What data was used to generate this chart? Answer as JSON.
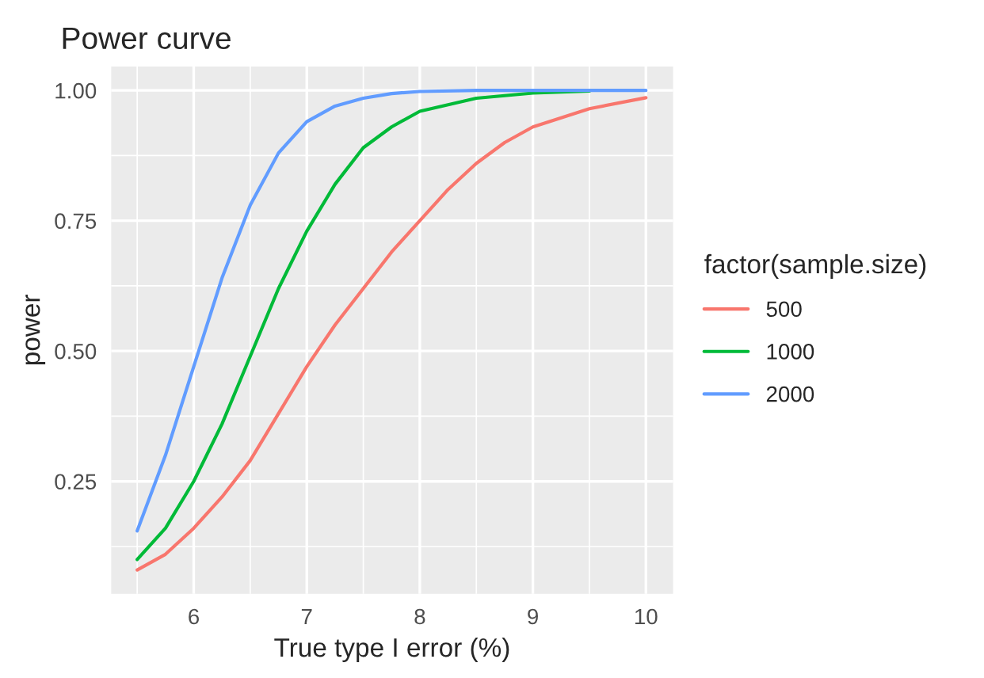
{
  "chart_data": {
    "type": "line",
    "title": "Power curve",
    "xlabel": "True type I error (%)",
    "ylabel": "power",
    "legend_title": "factor(sample.size)",
    "xlim": [
      5.27,
      10.24
    ],
    "ylim": [
      0.034,
      1.046
    ],
    "xticks": [
      6,
      7,
      8,
      9,
      10
    ],
    "yticks": [
      {
        "value": 0.25,
        "label": "0.25"
      },
      {
        "value": 0.5,
        "label": "0.50"
      },
      {
        "value": 0.75,
        "label": "0.75"
      },
      {
        "value": 1.0,
        "label": "1.00"
      }
    ],
    "grid": true,
    "legend": "right",
    "marker": "none",
    "line_style": "solid",
    "series": [
      {
        "name": "500",
        "color": "#f8766d",
        "x": [
          5.5,
          5.75,
          6,
          6.25,
          6.5,
          6.75,
          7,
          7.25,
          7.5,
          7.75,
          8,
          8.25,
          8.5,
          8.75,
          9,
          9.5,
          10
        ],
        "values": [
          0.08,
          0.11,
          0.16,
          0.22,
          0.29,
          0.38,
          0.47,
          0.55,
          0.62,
          0.69,
          0.75,
          0.81,
          0.86,
          0.9,
          0.93,
          0.965,
          0.986
        ]
      },
      {
        "name": "1000",
        "color": "#00ba38",
        "x": [
          5.5,
          5.75,
          6,
          6.25,
          6.5,
          6.75,
          7,
          7.25,
          7.5,
          7.75,
          8,
          8.5,
          9,
          9.5
        ],
        "values": [
          0.1,
          0.16,
          0.25,
          0.36,
          0.49,
          0.62,
          0.73,
          0.82,
          0.89,
          0.93,
          0.96,
          0.985,
          0.995,
          0.999
        ]
      },
      {
        "name": "2000",
        "color": "#619cff",
        "x": [
          5.5,
          5.75,
          6,
          6.25,
          6.5,
          6.75,
          7,
          7.25,
          7.5,
          7.75,
          8,
          8.5,
          9,
          10
        ],
        "values": [
          0.155,
          0.3,
          0.47,
          0.64,
          0.78,
          0.88,
          0.94,
          0.97,
          0.985,
          0.994,
          0.998,
          1.0,
          1.0,
          1.0
        ]
      }
    ]
  }
}
